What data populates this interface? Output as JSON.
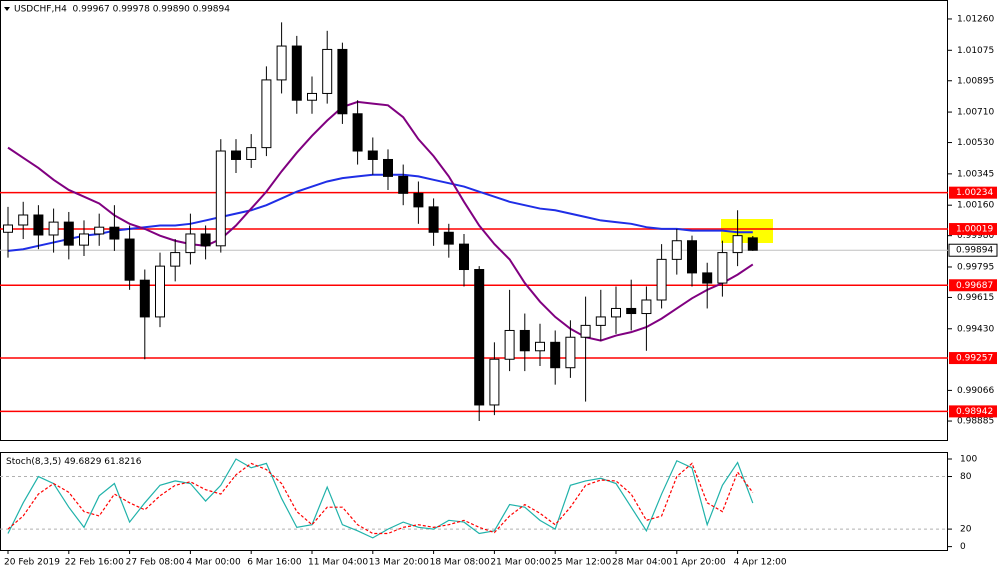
{
  "chart_data": [
    {
      "type": "candlestick",
      "title": "USDCHF,H4  0.99967 0.99978 0.99890 0.99894",
      "x_labels": [
        "20 Feb 2019",
        "22 Feb 16:00",
        "27 Feb 08:00",
        "4 Mar 00:00",
        "6 Mar 16:00",
        "11 Mar 04:00",
        "13 Mar 20:00",
        "18 Mar 08:00",
        "21 Mar 00:00",
        "25 Mar 12:00",
        "28 Mar 04:00",
        "1 Apr 20:00",
        "4 Apr 12:00"
      ],
      "open": [
        1.0,
        1.00043,
        1.00102,
        0.99984,
        1.0006,
        0.99924,
        0.9999,
        1.0003,
        0.9996,
        0.99717,
        0.995,
        0.998,
        0.9988,
        0.9999,
        0.9992,
        1.0048,
        1.0043,
        1.005,
        1.009,
        1.011,
        1.0078,
        1.0082,
        1.0108,
        1.007,
        1.0048,
        1.0043,
        1.0033,
        1.0023,
        1.0015,
        1.0,
        0.9993,
        0.9978,
        0.9898,
        0.9925,
        0.9942,
        0.993,
        0.9935,
        0.992,
        0.9938,
        0.9945,
        0.995,
        0.9955,
        0.9952,
        0.996,
        0.9984,
        0.9995,
        0.9976,
        0.997,
        0.9988,
        0.99967
      ],
      "high": [
        1.0015,
        1.0018,
        1.0016,
        1.0014,
        1.0012,
        1.0007,
        1.0011,
        1.0016,
        1.0004,
        0.9978,
        0.9988,
        0.9996,
        1.0011,
        1.0004,
        1.0055,
        1.0055,
        1.0058,
        1.0098,
        1.0124,
        1.0116,
        1.0092,
        1.0119,
        1.0112,
        1.0078,
        1.0056,
        1.0049,
        1.004,
        1.003,
        1.002,
        1.0005,
        0.9999,
        0.998,
        0.9935,
        0.9966,
        0.9952,
        0.9946,
        0.9942,
        0.9948,
        0.9962,
        0.9966,
        0.9968,
        0.9972,
        0.9968,
        0.9993,
        1.0002,
        0.9998,
        0.9982,
        0.9995,
        1.0013,
        0.99978
      ],
      "low": [
        0.9985,
        0.9996,
        0.999,
        0.9988,
        0.9984,
        0.9986,
        0.9992,
        0.9989,
        0.9966,
        0.9925,
        0.9944,
        0.9971,
        0.9981,
        0.9984,
        0.9988,
        1.0035,
        1.0038,
        1.0045,
        1.0082,
        1.007,
        1.007,
        1.0076,
        1.0064,
        1.004,
        1.0034,
        1.0025,
        1.0016,
        1.0005,
        0.9992,
        0.9985,
        0.9968,
        0.98885,
        0.9892,
        0.9918,
        0.9918,
        0.9921,
        0.991,
        0.9914,
        0.99,
        0.9936,
        0.994,
        0.9942,
        0.993,
        0.9955,
        0.9975,
        0.9968,
        0.9955,
        0.9962,
        0.998,
        0.9989
      ],
      "close": [
        1.00043,
        1.00102,
        0.99984,
        1.0006,
        0.99924,
        0.9999,
        1.0003,
        0.9996,
        0.99717,
        0.995,
        0.998,
        0.9988,
        0.9999,
        0.9992,
        1.0048,
        1.0043,
        1.005,
        1.009,
        1.011,
        1.0078,
        1.0082,
        1.0108,
        1.007,
        1.0048,
        1.0043,
        1.0033,
        1.0023,
        1.0015,
        1.0,
        0.9993,
        0.9978,
        0.9898,
        0.9925,
        0.9942,
        0.993,
        0.9935,
        0.992,
        0.9938,
        0.9945,
        0.995,
        0.9955,
        0.9952,
        0.996,
        0.9984,
        0.9995,
        0.9976,
        0.997,
        0.9988,
        0.9998,
        0.99894
      ],
      "up_color": "#ffffff",
      "down_color": "#000000",
      "lines": [
        {
          "color": "#1f2ee6",
          "values": [
            0.9989,
            0.999,
            0.9992,
            0.9994,
            0.9996,
            0.9998,
            0.9999,
            1.0001,
            1.0002,
            1.0003,
            1.0004,
            1.0004,
            1.0005,
            1.0007,
            1.0009,
            1.0011,
            1.0013,
            1.0016,
            1.002,
            1.0024,
            1.0027,
            1.003,
            1.0032,
            1.0033,
            1.0034,
            1.0034,
            1.0034,
            1.0033,
            1.0031,
            1.0029,
            1.0027,
            1.0024,
            1.0021,
            1.0018,
            1.0016,
            1.0014,
            1.0013,
            1.0011,
            1.0009,
            1.0007,
            1.0006,
            1.0005,
            1.0003,
            1.0002,
            1.0002,
            1.0001,
            1.0001,
            1.0001,
            1.0,
            1.0
          ]
        },
        {
          "color": "#800080",
          "values": [
            1.005,
            1.0044,
            1.0038,
            1.0031,
            1.0025,
            1.0021,
            1.0017,
            1.001,
            1.0005,
            1.0002,
            0.9998,
            0.9995,
            0.9993,
            0.9992,
            0.9996,
            1.0004,
            1.0014,
            1.0024,
            1.0036,
            1.0047,
            1.0057,
            1.0066,
            1.0074,
            1.0077,
            1.0076,
            1.0075,
            1.0068,
            1.0055,
            1.0045,
            1.0033,
            1.0018,
            1.0004,
            0.9993,
            0.9984,
            0.997,
            0.9959,
            0.995,
            0.9943,
            0.9938,
            0.9936,
            0.9939,
            0.9941,
            0.9944,
            0.9949,
            0.9955,
            0.9961,
            0.9966,
            0.997,
            0.9975,
            0.9981
          ]
        }
      ],
      "levels": {
        "color": "#ff0000",
        "values": [
          1.00234,
          1.00019,
          0.99687,
          0.99257,
          0.98942
        ]
      },
      "last_price": 0.99894,
      "ylim": [
        0.98773,
        1.01372
      ],
      "yticks": [
        {
          "value": 1.0126,
          "label": "1.01260"
        },
        1.01075,
        1.00895,
        {
          "value": 1.0071,
          "label": "1.00710"
        },
        {
          "value": 1.0053,
          "label": "1.00530"
        },
        1.00345,
        {
          "value": 1.0016,
          "label": "1.00160"
        },
        {
          "value": 0.9998,
          "label": "0.99980"
        },
        0.99795,
        0.99615,
        {
          "value": 0.9943,
          "label": "0.99430"
        },
        0.99066,
        0.98885
      ]
    },
    {
      "type": "line",
      "title": "Stoch(8,3,5)",
      "series": [
        {
          "color": "#20b2aa",
          "dash": false,
          "values": [
            15,
            50,
            80,
            72,
            45,
            22,
            58,
            72,
            28,
            50,
            70,
            75,
            72,
            52,
            70,
            100,
            90,
            95,
            55,
            22,
            25,
            68,
            25,
            18,
            10,
            20,
            28,
            22,
            20,
            30,
            28,
            15,
            18,
            48,
            45,
            30,
            20,
            70,
            75,
            78,
            72,
            45,
            18,
            60,
            98,
            90,
            25,
            70,
            96,
            49.6829
          ]
        },
        {
          "color": "#ff0000",
          "dash": true,
          "values": [
            20,
            35,
            60,
            72,
            62,
            40,
            35,
            60,
            50,
            42,
            58,
            70,
            74,
            65,
            60,
            82,
            95,
            88,
            72,
            40,
            25,
            45,
            45,
            25,
            15,
            15,
            22,
            25,
            22,
            25,
            30,
            22,
            16,
            35,
            48,
            38,
            25,
            45,
            70,
            76,
            75,
            60,
            30,
            35,
            80,
            95,
            50,
            40,
            85,
            61.8216
          ]
        }
      ],
      "ylim": [
        -5,
        108
      ],
      "yticks": [
        100,
        80,
        20,
        0
      ],
      "grid_levels": [
        80,
        20
      ]
    }
  ]
}
